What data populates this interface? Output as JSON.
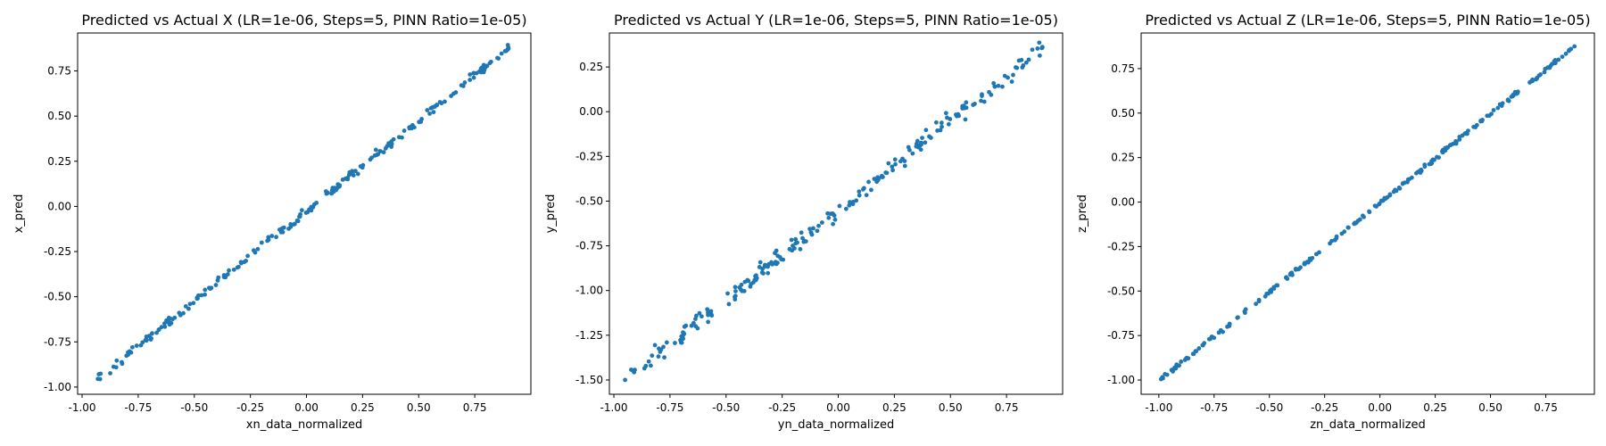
{
  "chart_data": [
    {
      "type": "scatter",
      "title": "Predicted vs Actual X (LR=1e-06, Steps=5, PINN Ratio=1e-05)",
      "xlabel": "xn_data_normalized",
      "ylabel": "x_pred",
      "xlim": [
        -1.02,
        1.0
      ],
      "ylim": [
        -1.04,
        0.96
      ],
      "xticks": [
        "-1.00",
        "-0.75",
        "-0.50",
        "-0.25",
        "0.00",
        "0.25",
        "0.50",
        "0.75"
      ],
      "yticks": [
        "-1.00",
        "-0.75",
        "-0.50",
        "-0.25",
        "0.00",
        "0.25",
        "0.50",
        "0.75"
      ],
      "trend": {
        "x_start": -0.93,
        "x_end": 0.9,
        "slope": 1.0,
        "intercept": -0.025,
        "spread": 0.015,
        "n": 220
      },
      "color": "#1f77b4",
      "grid": false
    },
    {
      "type": "scatter",
      "title": "Predicted vs Actual Y (LR=1e-06, Steps=5, PINN Ratio=1e-05)",
      "xlabel": "yn_data_normalized",
      "ylabel": "y_pred",
      "xlim": [
        -1.02,
        1.0
      ],
      "ylim": [
        -1.58,
        0.44
      ],
      "xticks": [
        "-1.00",
        "-0.75",
        "-0.50",
        "-0.25",
        "0.00",
        "0.25",
        "0.50",
        "0.75"
      ],
      "yticks": [
        "-1.50",
        "-1.25",
        "-1.00",
        "-0.75",
        "-0.50",
        "-0.25",
        "0.00",
        "0.25"
      ],
      "trend": {
        "x_start": -0.95,
        "x_end": 0.91,
        "slope": 1.0,
        "intercept": -0.55,
        "spread": 0.03,
        "n": 220
      },
      "color": "#1f77b4",
      "grid": false
    },
    {
      "type": "scatter",
      "title": "Predicted vs Actual Z (LR=1e-06, Steps=5, PINN Ratio=1e-05)",
      "xlabel": "zn_data_normalized",
      "ylabel": "z_pred",
      "xlim": [
        -1.08,
        0.97
      ],
      "ylim": [
        -1.08,
        0.95
      ],
      "xticks": [
        "-1.00",
        "-0.75",
        "-0.50",
        "-0.25",
        "0.00",
        "0.25",
        "0.50",
        "0.75"
      ],
      "yticks": [
        "-1.00",
        "-0.75",
        "-0.50",
        "-0.25",
        "0.00",
        "0.25",
        "0.50",
        "0.75"
      ],
      "trend": {
        "x_start": -0.99,
        "x_end": 0.88,
        "slope": 1.0,
        "intercept": -0.005,
        "spread": 0.007,
        "n": 220
      },
      "color": "#1f77b4",
      "grid": false
    }
  ]
}
